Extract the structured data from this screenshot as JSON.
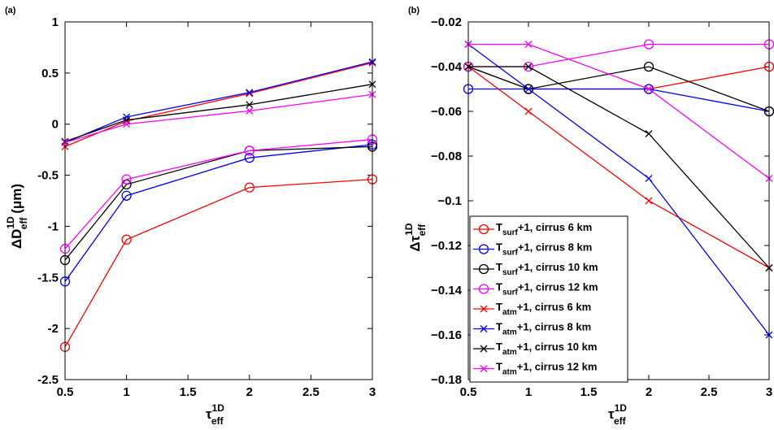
{
  "chart_data": [
    {
      "type": "line",
      "panel_label": "(a)",
      "x": [
        0.5,
        1,
        2,
        3
      ],
      "xlim": [
        0.5,
        3
      ],
      "ylim": [
        -2.5,
        1
      ],
      "xticks": [
        "0.5",
        "1",
        "1.5",
        "2",
        "2.5",
        "3"
      ],
      "yticks": [
        "1",
        "0.5",
        "0",
        "-0.5",
        "-1",
        "-1.5",
        "-2",
        "-2.5"
      ],
      "xlabel": {
        "main": "τ",
        "sup": "1D",
        "sub": "eff"
      },
      "ylabel": {
        "main": "ΔD",
        "sup": "1D",
        "sub": "eff",
        "tail": " (μm)"
      },
      "series": [
        {
          "color": "#ff0000",
          "marker": "circle",
          "values": [
            -2.18,
            -1.13,
            -0.62,
            -0.54
          ]
        },
        {
          "color": "#0000ff",
          "marker": "circle",
          "values": [
            -1.54,
            -0.7,
            -0.33,
            -0.2
          ]
        },
        {
          "color": "#000000",
          "marker": "circle",
          "values": [
            -1.33,
            -0.59,
            -0.26,
            -0.22
          ]
        },
        {
          "color": "#ff00ff",
          "marker": "circle",
          "values": [
            -1.22,
            -0.54,
            -0.26,
            -0.15
          ]
        },
        {
          "color": "#ff0000",
          "marker": "x",
          "values": [
            -0.22,
            0.03,
            0.3,
            0.6
          ]
        },
        {
          "color": "#0000ff",
          "marker": "x",
          "values": [
            -0.18,
            0.07,
            0.31,
            0.61
          ]
        },
        {
          "color": "#000000",
          "marker": "x",
          "values": [
            -0.17,
            0.04,
            0.19,
            0.39
          ]
        },
        {
          "color": "#ff00ff",
          "marker": "x",
          "values": [
            -0.18,
            0.0,
            0.13,
            0.29
          ]
        }
      ]
    },
    {
      "type": "line",
      "panel_label": "(b)",
      "x": [
        0.5,
        1,
        2,
        3
      ],
      "xlim": [
        0.5,
        3
      ],
      "ylim": [
        -0.18,
        -0.02
      ],
      "xticks": [
        "0.5",
        "1",
        "1.5",
        "2",
        "2.5",
        "3"
      ],
      "yticks": [
        "−0.02",
        "−0.04",
        "−0.06",
        "−0.08",
        "−0.1",
        "−0.12",
        "−0.14",
        "−0.16",
        "−0.18"
      ],
      "xlabel": {
        "main": "τ",
        "sup": "1D",
        "sub": "eff"
      },
      "ylabel": {
        "main": "Δτ",
        "sup": "1D",
        "sub": "eff",
        "tail": ""
      },
      "legend_position": "lower-left",
      "series": [
        {
          "color": "#ff0000",
          "marker": "circle",
          "name": {
            "pre": "T",
            "sub": "surf",
            "post": "+1, cirrus 6 km"
          },
          "values": [
            -0.04,
            -0.05,
            -0.05,
            -0.04
          ]
        },
        {
          "color": "#0000ff",
          "marker": "circle",
          "name": {
            "pre": "T",
            "sub": "surf",
            "post": "+1, cirrus 8 km"
          },
          "values": [
            -0.05,
            -0.05,
            -0.05,
            -0.06
          ]
        },
        {
          "color": "#000000",
          "marker": "circle",
          "name": {
            "pre": "T",
            "sub": "surf",
            "post": "+1, cirrus 10 km"
          },
          "values": [
            -0.04,
            -0.05,
            -0.04,
            -0.06
          ]
        },
        {
          "color": "#ff00ff",
          "marker": "circle",
          "name": {
            "pre": "T",
            "sub": "surf",
            "post": "+1, cirrus 12 km"
          },
          "values": [
            -0.04,
            -0.04,
            -0.03,
            -0.03
          ]
        },
        {
          "color": "#ff0000",
          "marker": "x",
          "name": {
            "pre": "T",
            "sub": "atm",
            "post": "+1, cirrus 6 km"
          },
          "values": [
            -0.04,
            -0.06,
            -0.1,
            -0.13
          ]
        },
        {
          "color": "#0000ff",
          "marker": "x",
          "name": {
            "pre": "T",
            "sub": "atm",
            "post": "+1, cirrus 8 km"
          },
          "values": [
            -0.03,
            -0.05,
            -0.09,
            -0.16
          ]
        },
        {
          "color": "#000000",
          "marker": "x",
          "name": {
            "pre": "T",
            "sub": "atm",
            "post": "+1, cirrus 10 km"
          },
          "values": [
            -0.04,
            -0.04,
            -0.07,
            -0.13
          ]
        },
        {
          "color": "#ff00ff",
          "marker": "x",
          "name": {
            "pre": "T",
            "sub": "atm",
            "post": "+1, cirrus 12 km"
          },
          "values": [
            -0.03,
            -0.03,
            -0.05,
            -0.09
          ]
        }
      ]
    }
  ]
}
